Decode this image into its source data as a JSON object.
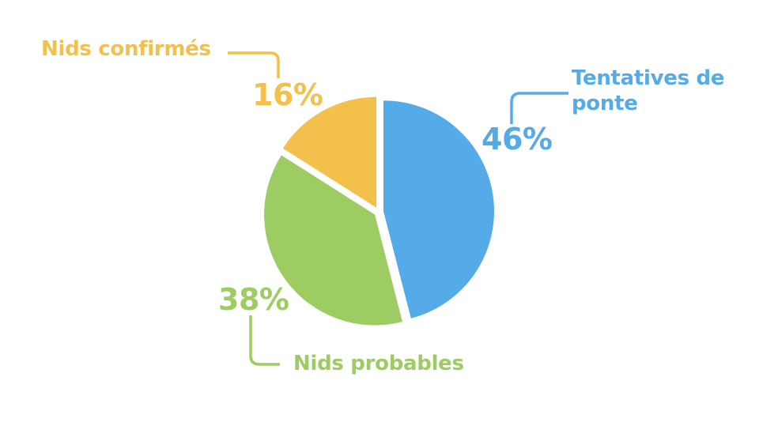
{
  "background": "#FFFFFF",
  "chart_data": {
    "type": "pie",
    "title": "",
    "legend_position": "callout-labels",
    "start_angle_deg": 0,
    "direction": "clockwise",
    "exploded": true,
    "slices": [
      {
        "label": "Tentatives de ponte",
        "value": 46,
        "pct_label": "46%",
        "color": "#54ABE8"
      },
      {
        "label": "Nids probables",
        "value": 38,
        "pct_label": "38%",
        "color": "#9DCD62"
      },
      {
        "label": "Nids confirmés",
        "value": 16,
        "pct_label": "16%",
        "color": "#F2C04B"
      }
    ]
  }
}
